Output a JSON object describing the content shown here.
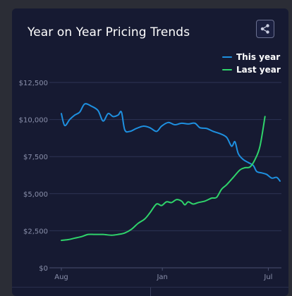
{
  "chart_data": {
    "type": "line",
    "title": "Year on Year Pricing Trends",
    "x_ticks": [
      "Aug",
      "Jan",
      "Jul"
    ],
    "y_ticks": [
      "$0",
      "$2,500",
      "$5,000",
      "$7,500",
      "$10,000",
      "$12,500"
    ],
    "ylim": [
      0,
      12500
    ],
    "grid": true,
    "legend_position": "top-right",
    "series": [
      {
        "name": "This year",
        "color": "#1e90e0",
        "points": [
          [
            0,
            10400
          ],
          [
            0.2,
            9600
          ],
          [
            0.5,
            10000
          ],
          [
            0.8,
            10300
          ],
          [
            1.1,
            10500
          ],
          [
            1.4,
            11050
          ],
          [
            1.8,
            10900
          ],
          [
            2.2,
            10600
          ],
          [
            2.5,
            9900
          ],
          [
            2.8,
            10400
          ],
          [
            3.1,
            10200
          ],
          [
            3.4,
            10300
          ],
          [
            3.6,
            10500
          ],
          [
            3.8,
            9300
          ],
          [
            4.1,
            9200
          ],
          [
            4.5,
            9400
          ],
          [
            4.9,
            9550
          ],
          [
            5.3,
            9450
          ],
          [
            5.7,
            9200
          ],
          [
            6.0,
            9550
          ],
          [
            6.4,
            9800
          ],
          [
            6.8,
            9650
          ],
          [
            7.2,
            9750
          ],
          [
            7.6,
            9700
          ],
          [
            8.0,
            9750
          ],
          [
            8.3,
            9450
          ],
          [
            8.7,
            9400
          ],
          [
            9.1,
            9200
          ],
          [
            9.5,
            9050
          ],
          [
            9.9,
            8800
          ],
          [
            10.2,
            8200
          ],
          [
            10.4,
            8500
          ],
          [
            10.6,
            7700
          ],
          [
            10.9,
            7300
          ],
          [
            11.2,
            7100
          ],
          [
            11.5,
            6900
          ],
          [
            11.7,
            6500
          ],
          [
            12.0,
            6400
          ],
          [
            12.3,
            6300
          ],
          [
            12.6,
            6050
          ],
          [
            12.9,
            6100
          ],
          [
            13.1,
            5850
          ]
        ]
      },
      {
        "name": "Last year",
        "color": "#2fd46b",
        "points": [
          [
            0,
            1850
          ],
          [
            0.4,
            1900
          ],
          [
            0.8,
            2000
          ],
          [
            1.2,
            2100
          ],
          [
            1.6,
            2250
          ],
          [
            2.0,
            2250
          ],
          [
            2.5,
            2250
          ],
          [
            3.0,
            2200
          ],
          [
            3.4,
            2250
          ],
          [
            3.8,
            2350
          ],
          [
            4.2,
            2600
          ],
          [
            4.6,
            3000
          ],
          [
            5.0,
            3300
          ],
          [
            5.3,
            3700
          ],
          [
            5.7,
            4300
          ],
          [
            6.0,
            4200
          ],
          [
            6.3,
            4450
          ],
          [
            6.6,
            4400
          ],
          [
            6.9,
            4600
          ],
          [
            7.2,
            4500
          ],
          [
            7.4,
            4250
          ],
          [
            7.6,
            4450
          ],
          [
            7.9,
            4300
          ],
          [
            8.2,
            4400
          ],
          [
            8.6,
            4500
          ],
          [
            9.0,
            4700
          ],
          [
            9.3,
            4750
          ],
          [
            9.6,
            5300
          ],
          [
            9.9,
            5600
          ],
          [
            10.3,
            6100
          ],
          [
            10.7,
            6600
          ],
          [
            11.0,
            6750
          ],
          [
            11.3,
            6800
          ],
          [
            11.6,
            7300
          ],
          [
            11.9,
            8200
          ],
          [
            12.2,
            10200
          ]
        ]
      }
    ],
    "x_range": [
      0,
      13.1
    ],
    "x_tick_positions": [
      0,
      6.05,
      12.4
    ]
  },
  "share_icon": "share-icon"
}
